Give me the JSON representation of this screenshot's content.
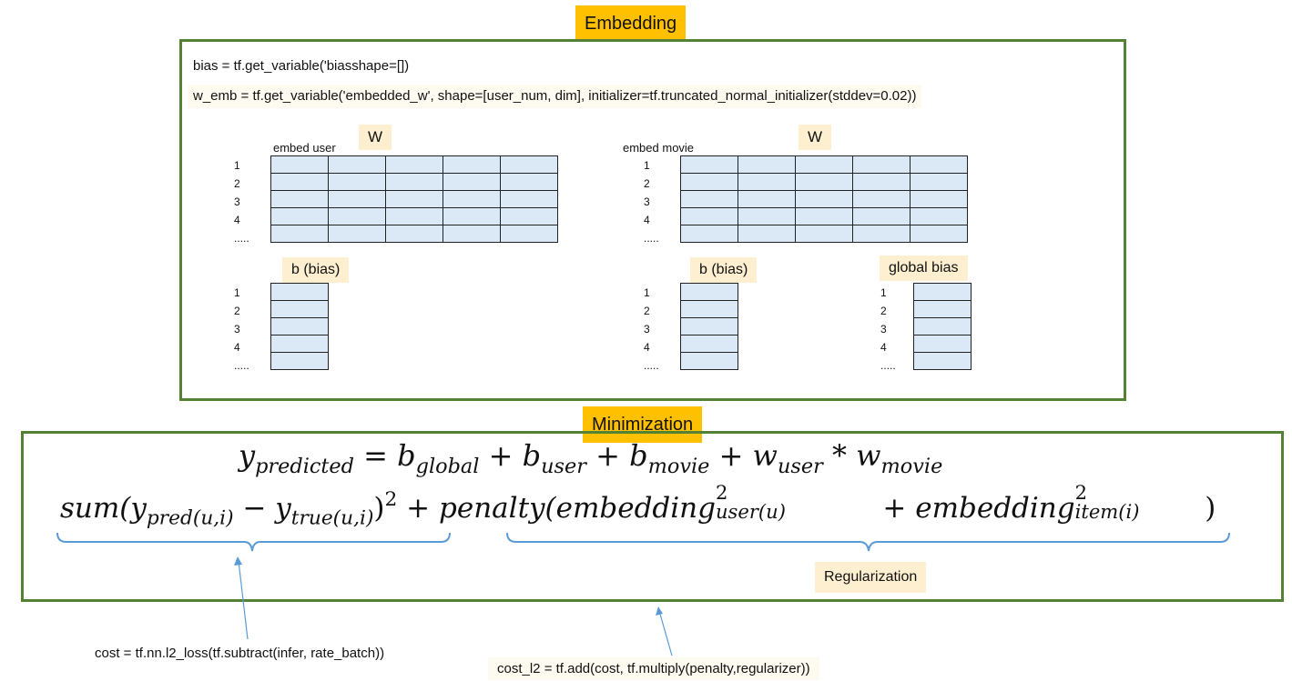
{
  "embedding_section": {
    "title": "Embedding",
    "code_line_1": "bias = tf.get_variable('biasshape=[])",
    "code_line_2": "w_emb = tf.get_variable('embedded_w', shape=[user_num, dim], initializer=tf.truncated_normal_initializer(stddev=0.02))",
    "user_w_label": "W",
    "user_caption": "embed user",
    "movie_w_label": "W",
    "movie_caption": "embed movie",
    "user_bias_label": "b (bias)",
    "movie_bias_label": "b (bias)",
    "global_bias_label": "global bias",
    "row_labels": [
      "1",
      "2",
      "3",
      "4",
      "....."
    ]
  },
  "minimization_section": {
    "title": "Minimization",
    "eq1": {
      "y": "y",
      "y_sub": "predicted",
      "eq": " = ",
      "b1": "b",
      "b1_sub": "global",
      "plus1": " + ",
      "b2": "b",
      "b2_sub": "user",
      "plus2": " + ",
      "b3": "b",
      "b3_sub": "movie",
      "plus3": " + ",
      "w1": "w",
      "w1_sub": "user",
      "star": " * ",
      "w2": "w",
      "w2_sub": "movie"
    },
    "eq2": {
      "sum_open": "sum(",
      "y1": "y",
      "y1_sub": "pred(u,i)",
      "minus": " − ",
      "y2": "y",
      "y2_sub": "true(u,i)",
      "close": ")",
      "sq": "2",
      "plus": " + ",
      "penalty_open": "penalty(",
      "emb1": "embedding",
      "emb1_sup": "2",
      "emb1_sub": "user(u)",
      "plus_inner": " + ",
      "emb2": "embedding",
      "emb2_sup": "2",
      "emb2_sub": "item(i)",
      "penalty_close": ")"
    },
    "regularization_label": "Regularization"
  },
  "notes": {
    "cost": "cost = tf.nn.l2_loss(tf.subtract(infer, rate_batch))",
    "cost_l2": "cost_l2 = tf.add(cost, tf.multiply(penalty,regularizer))"
  },
  "colors": {
    "frame": "#548235",
    "title_tag": "#ffc000",
    "label_tag": "#fdefd0",
    "cell": "#dbe9f6",
    "brace": "#5b9bd5"
  }
}
